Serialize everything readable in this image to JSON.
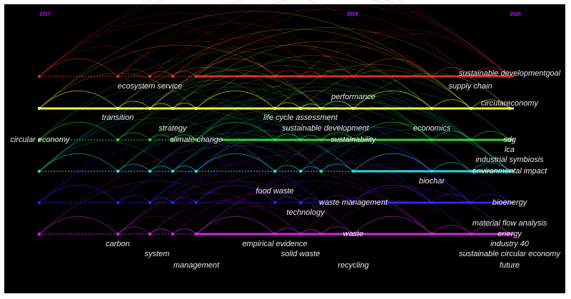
{
  "years": [
    "2017",
    "2019",
    "2020"
  ],
  "keywords": [
    "ecosystem service",
    "sustainable developmentgoal",
    "supply chain",
    "performance",
    "circulareconomy",
    "transition",
    "life cycle assessment",
    "strategy",
    "sustainable development",
    "economics",
    "circular economy",
    "climate change",
    "sustainability",
    "sdg",
    "lca",
    "industrial symbiosis",
    "environmental impact",
    "biochar",
    "food waste",
    "waste management",
    "bioenergy",
    "technology",
    "material flow analysis",
    "carbon",
    "waste",
    "energy",
    "empirical evidence",
    "industry 40",
    "system",
    "solid waste",
    "sustainable circular economy",
    "management",
    "recycling",
    "future"
  ]
}
